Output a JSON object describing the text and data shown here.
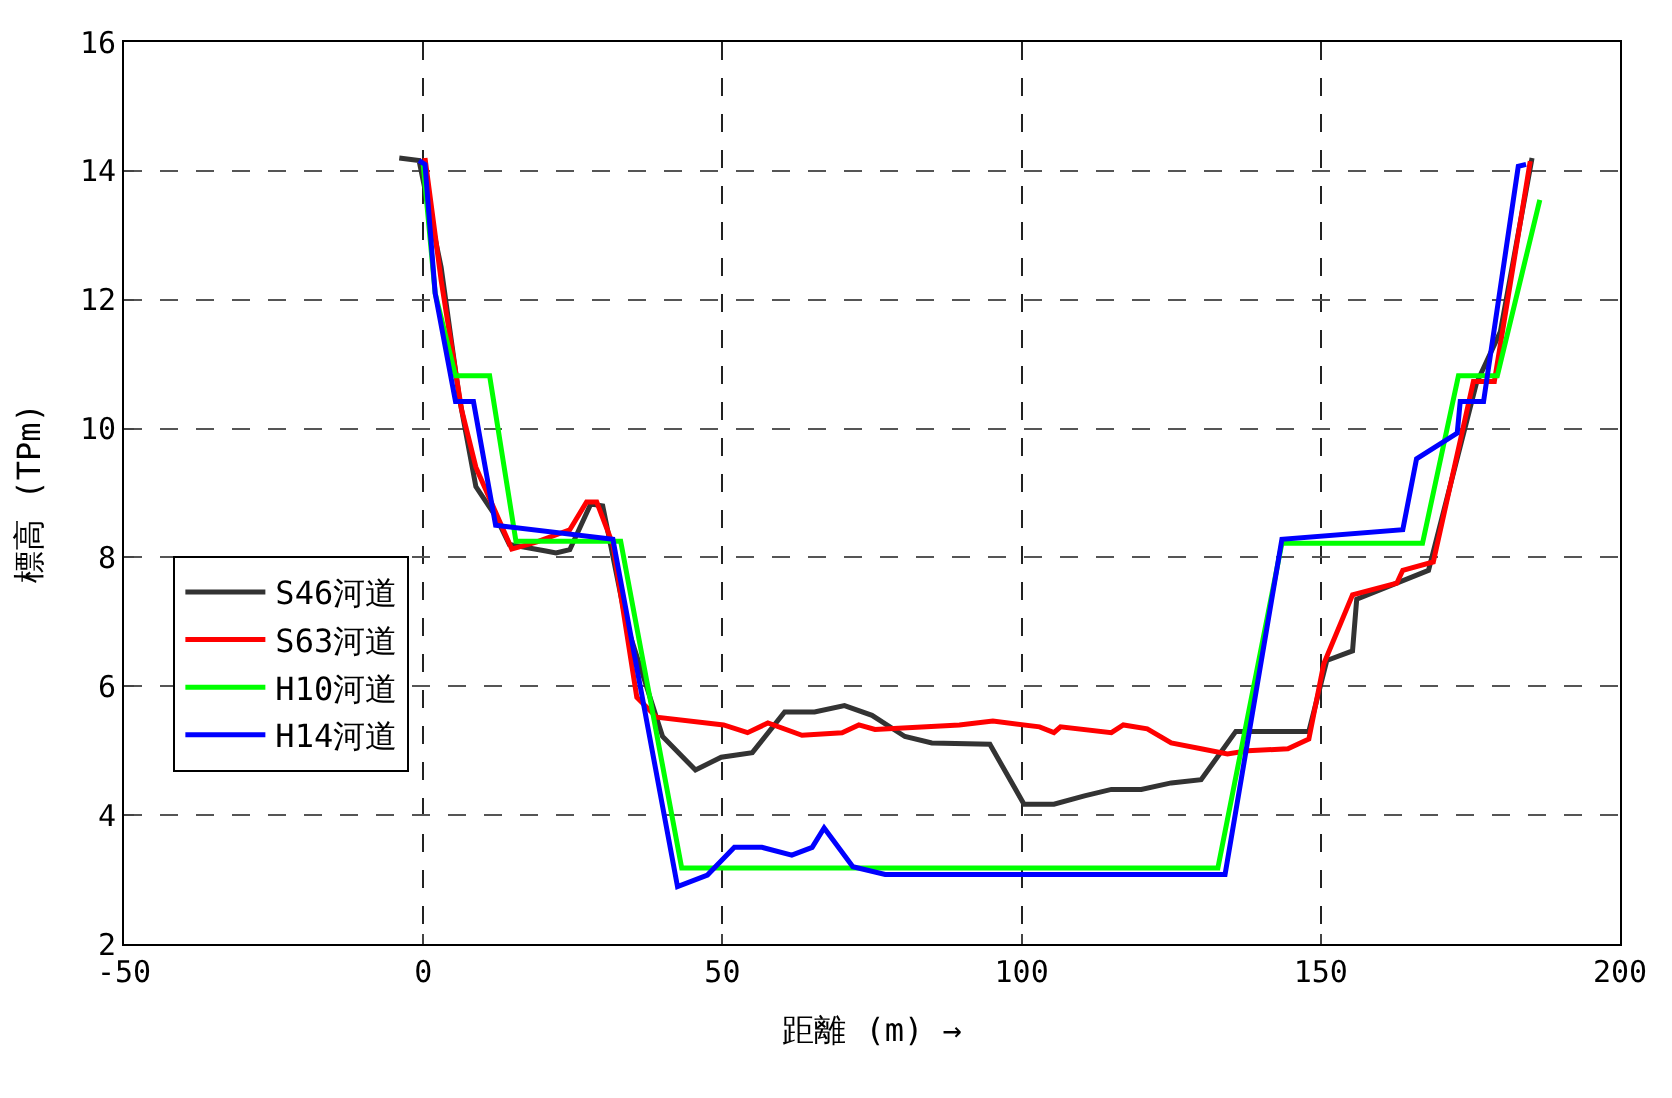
{
  "chart_data": {
    "type": "line",
    "xlabel": "距離 (m) →",
    "ylabel": "標高 (TPm)",
    "xlim": [
      -50,
      200
    ],
    "xticks": [
      -50,
      0,
      50,
      100,
      150,
      200
    ],
    "ylim": [
      2,
      16
    ],
    "yticks": [
      2,
      4,
      6,
      8,
      10,
      12,
      14,
      16
    ],
    "grid": true,
    "legend": "left",
    "line_style": "solid",
    "marker": "none",
    "series": [
      {
        "name": "S46河道",
        "color": "#333333",
        "x": [
          -4,
          -0.7,
          3,
          6,
          8.8,
          12.1,
          14.4,
          20.5,
          22.2,
          24.5,
          28,
          30,
          34,
          40,
          45.5,
          49.8,
          55,
          60.4,
          65.4,
          70.4,
          75,
          80.5,
          85,
          94.7,
          100.4,
          105.4,
          110.5,
          115,
          120,
          125,
          130,
          135.8,
          148,
          151,
          155.3,
          156,
          168,
          176,
          180,
          185.3
        ],
        "values": [
          14.2,
          14.16,
          12.5,
          10.5,
          9.1,
          8.64,
          8.2,
          8.1,
          8.07,
          8.12,
          8.83,
          8.8,
          6.96,
          5.22,
          4.7,
          4.9,
          4.97,
          5.6,
          5.6,
          5.7,
          5.55,
          5.22,
          5.12,
          5.1,
          4.17,
          4.17,
          4.3,
          4.4,
          4.4,
          4.5,
          4.55,
          5.3,
          5.3,
          6.4,
          6.55,
          7.35,
          7.8,
          10.7,
          11.5,
          14.2
        ]
      },
      {
        "name": "S63河道",
        "color": "#ff0000",
        "x": [
          0.3,
          3,
          6.4,
          8.8,
          14.8,
          19,
          24.5,
          27.3,
          29,
          31.7,
          35.7,
          39,
          50.2,
          54.2,
          57.6,
          63.3,
          70,
          72.8,
          75.5,
          89.6,
          95.2,
          103,
          105.4,
          106.5,
          115,
          117,
          121,
          125,
          130,
          134.4,
          137.8,
          144.5,
          148,
          150.5,
          155.3,
          162.7,
          163.7,
          168.8,
          175.5,
          179,
          185
        ],
        "values": [
          14.2,
          12.3,
          10.3,
          9.4,
          8.13,
          8.24,
          8.43,
          8.86,
          8.86,
          8.2,
          5.83,
          5.52,
          5.4,
          5.28,
          5.43,
          5.24,
          5.28,
          5.4,
          5.33,
          5.4,
          5.46,
          5.37,
          5.28,
          5.37,
          5.28,
          5.4,
          5.34,
          5.12,
          5.03,
          4.95,
          5.0,
          5.03,
          5.18,
          6.35,
          7.42,
          7.6,
          7.8,
          7.93,
          10.73,
          10.73,
          14.15
        ]
      },
      {
        "name": "H10河道",
        "color": "#00ff00",
        "x": [
          0,
          2,
          5.4,
          11.1,
          15.5,
          33,
          43.2,
          132.8,
          143.5,
          167,
          173,
          179.5,
          186.6
        ],
        "values": [
          14.1,
          12.1,
          10.82,
          10.82,
          8.25,
          8.25,
          3.18,
          3.18,
          8.22,
          8.22,
          10.82,
          10.82,
          13.55
        ]
      },
      {
        "name": "H14河道",
        "color": "#0000ff",
        "x": [
          -0.7,
          0.3,
          2,
          5.4,
          8.4,
          12.1,
          31.7,
          42.5,
          47.5,
          52,
          56.6,
          61.6,
          65,
          67,
          71.8,
          77.2,
          134,
          143.5,
          163.7,
          166,
          172.8,
          173.3,
          177.2,
          183,
          184.3
        ],
        "values": [
          14.16,
          14.1,
          12.1,
          10.42,
          10.42,
          8.5,
          8.28,
          2.89,
          3.07,
          3.5,
          3.5,
          3.38,
          3.5,
          3.8,
          3.2,
          3.08,
          3.08,
          8.28,
          8.43,
          9.53,
          9.93,
          10.42,
          10.42,
          14.07,
          14.1
        ]
      }
    ]
  }
}
